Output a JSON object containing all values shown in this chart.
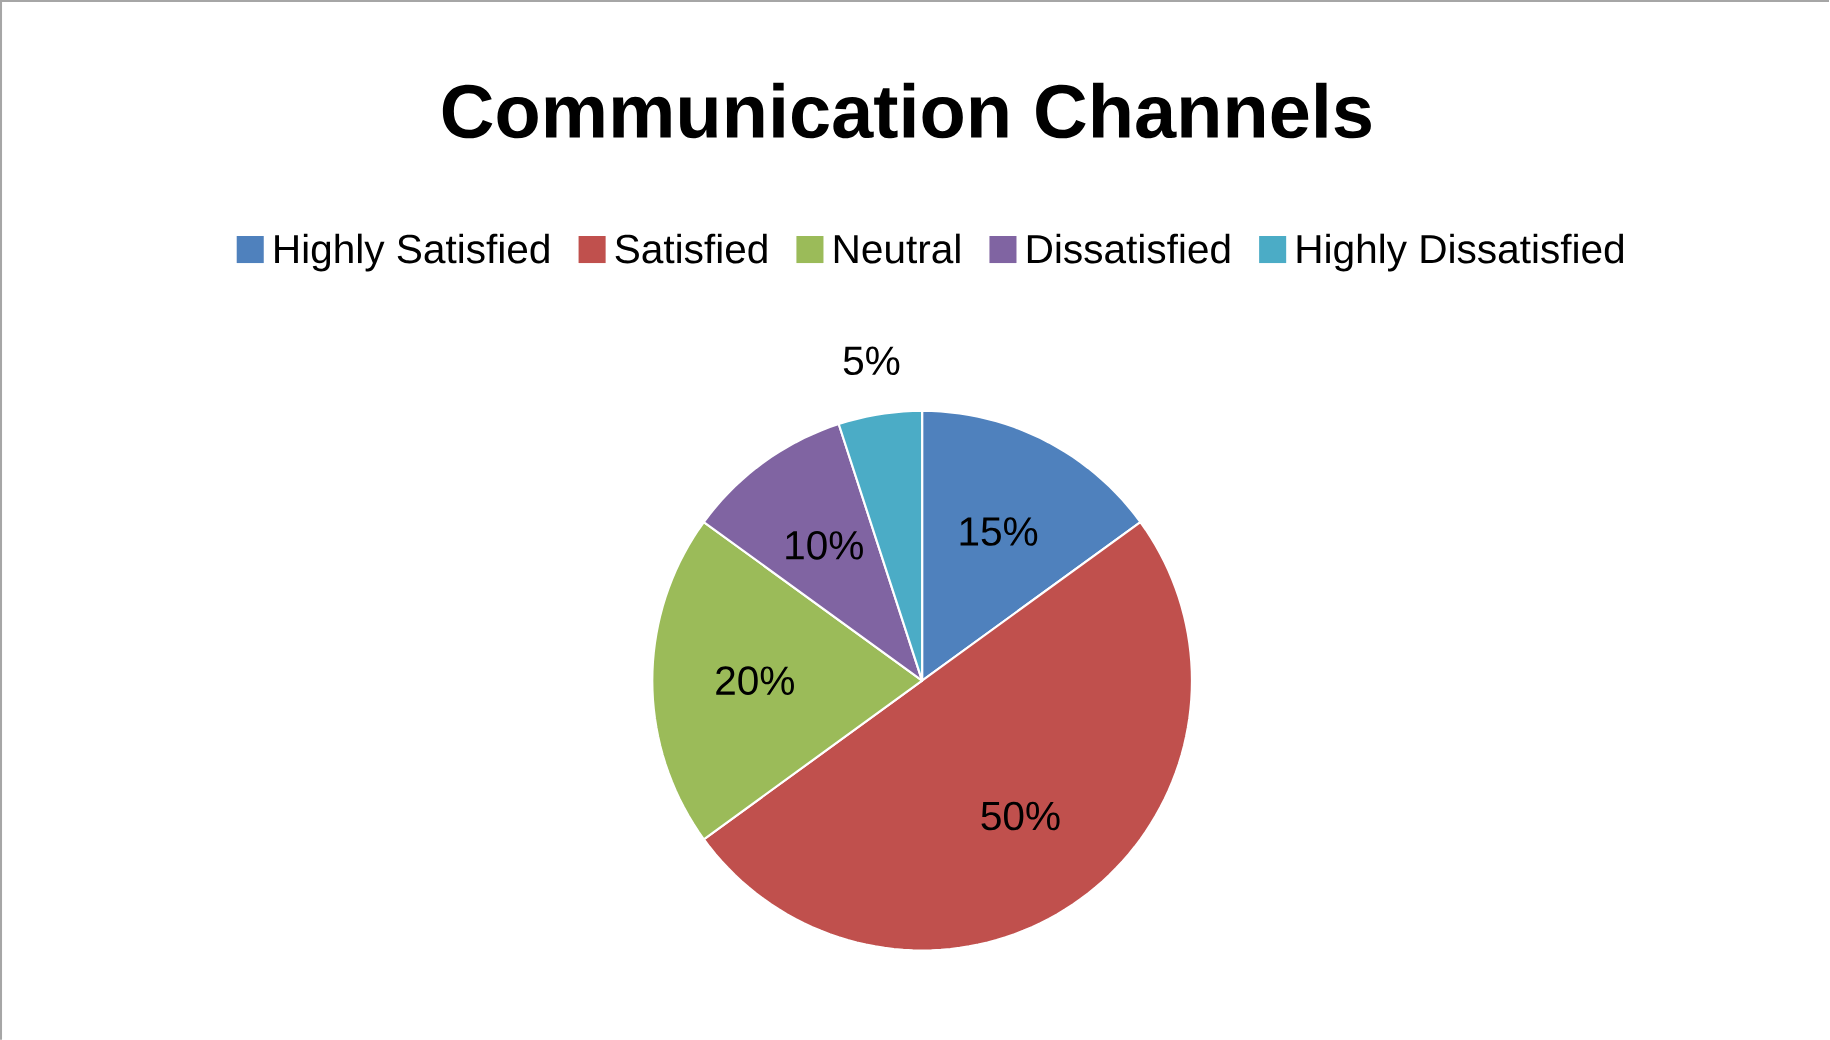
{
  "chart_data": {
    "type": "pie",
    "title": "Communication Channels",
    "categories": [
      "Highly Satisfied",
      "Satisfied",
      "Neutral",
      "Dissatisfied",
      "Highly Dissatisfied"
    ],
    "values": [
      15,
      50,
      20,
      10,
      5
    ],
    "colors": [
      "#4f81bd",
      "#c0504d",
      "#9bbb59",
      "#8064a2",
      "#4bacc6"
    ],
    "value_labels": [
      "15%",
      "50%",
      "20%",
      "10%",
      "5%"
    ],
    "legend": "top"
  }
}
